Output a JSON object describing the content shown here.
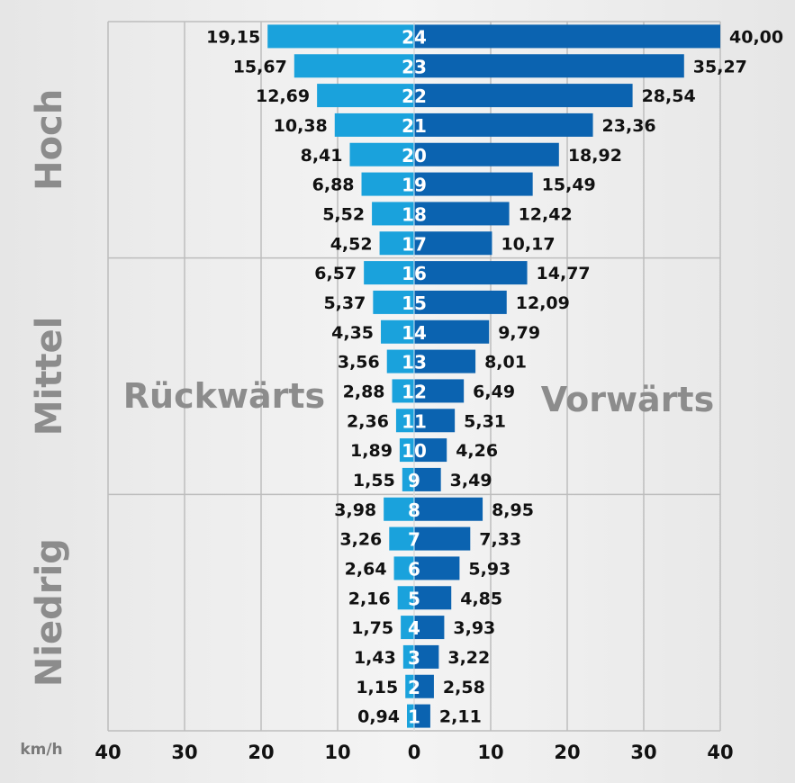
{
  "chart_data": {
    "type": "bar",
    "orientation": "horizontal-diverging",
    "categories": [
      "24",
      "23",
      "22",
      "21",
      "20",
      "19",
      "18",
      "17",
      "16",
      "15",
      "14",
      "13",
      "12",
      "11",
      "10",
      "9",
      "8",
      "7",
      "6",
      "5",
      "4",
      "3",
      "2",
      "1"
    ],
    "series": [
      {
        "name": "Rückwärts",
        "color": "#1aa2dc",
        "values": [
          19.15,
          15.67,
          12.69,
          10.38,
          8.41,
          6.88,
          5.52,
          4.52,
          6.57,
          5.37,
          4.35,
          3.56,
          2.88,
          2.36,
          1.89,
          1.55,
          3.98,
          3.26,
          2.64,
          2.16,
          1.75,
          1.43,
          1.15,
          0.94
        ],
        "labels": [
          "19,15",
          "15,67",
          "12,69",
          "10,38",
          "8,41",
          "6,88",
          "5,52",
          "4,52",
          "6,57",
          "5,37",
          "4,35",
          "3,56",
          "2,88",
          "2,36",
          "1,89",
          "1,55",
          "3,98",
          "3,26",
          "2,64",
          "2,16",
          "1,75",
          "1,43",
          "1,15",
          "0,94"
        ]
      },
      {
        "name": "Vorwärts",
        "color": "#0b63b0",
        "values": [
          40.0,
          35.27,
          28.54,
          23.36,
          18.92,
          15.49,
          12.42,
          10.17,
          14.77,
          12.09,
          9.79,
          8.01,
          6.49,
          5.31,
          4.26,
          3.49,
          8.95,
          7.33,
          5.93,
          4.85,
          3.93,
          3.22,
          2.58,
          2.11
        ],
        "labels": [
          "40,00",
          "35,27",
          "28,54",
          "23,36",
          "18,92",
          "15,49",
          "12,42",
          "10,17",
          "14,77",
          "12,09",
          "9,79",
          "8,01",
          "6,49",
          "5,31",
          "4,26",
          "3,49",
          "8,95",
          "7,33",
          "5,93",
          "4,85",
          "3,93",
          "3,22",
          "2,58",
          "2,11"
        ]
      }
    ],
    "groups": [
      {
        "label": "Hoch",
        "gears": [
          "24",
          "23",
          "22",
          "21",
          "20",
          "19",
          "18",
          "17"
        ]
      },
      {
        "label": "Mittel",
        "gears": [
          "16",
          "15",
          "14",
          "13",
          "12",
          "11",
          "10",
          "9"
        ]
      },
      {
        "label": "Niedrig",
        "gears": [
          "8",
          "7",
          "6",
          "5",
          "4",
          "3",
          "2",
          "1"
        ]
      }
    ],
    "x_ticks": [
      "40",
      "30",
      "20",
      "10",
      "0",
      "10",
      "20",
      "30",
      "40"
    ],
    "x_tick_values": [
      -40,
      -30,
      -20,
      -10,
      0,
      10,
      20,
      30,
      40
    ],
    "xlim": [
      -40,
      40
    ],
    "unit_label": "km/h",
    "grid": true
  }
}
